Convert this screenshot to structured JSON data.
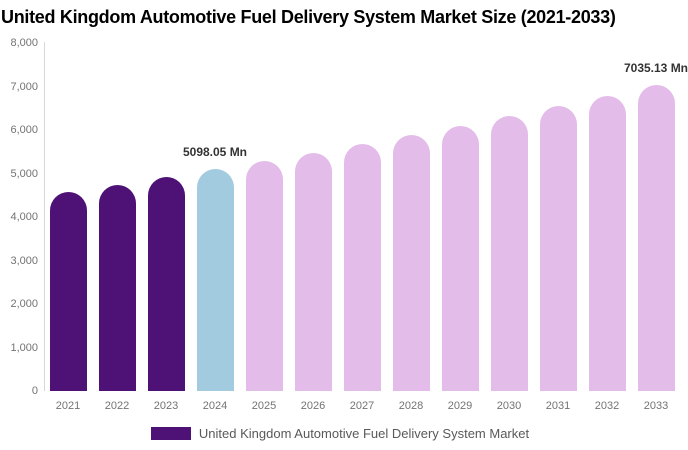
{
  "title": "United Kingdom Automotive Fuel Delivery System Market Size (2021-2033)",
  "legend": {
    "label": "United Kingdom Automotive Fuel Delivery System Market",
    "swatch_color": "#4e1277"
  },
  "colors": {
    "historical_bar": "#4e1277",
    "base_year_bar": "#a3cbe0",
    "forecast_bar": "#e4bcea",
    "axis_line": "#d8d8d8",
    "tick_text": "#737373",
    "data_label_text": "#333333",
    "legend_text": "#595959",
    "title_text": "#000000"
  },
  "chart_data": {
    "type": "bar",
    "title": "United Kingdom Automotive Fuel Delivery System Market Size (2021-2033)",
    "xlabel": "",
    "ylabel": "",
    "unit": "Mn",
    "grid": false,
    "legend_position": "bottom",
    "ylim": [
      0,
      8000
    ],
    "y_ticks": [
      {
        "value": 0,
        "label": "0"
      },
      {
        "value": 1000,
        "label": "1,000"
      },
      {
        "value": 2000,
        "label": "2,000"
      },
      {
        "value": 3000,
        "label": "3,000"
      },
      {
        "value": 4000,
        "label": "4,000"
      },
      {
        "value": 5000,
        "label": "5,000"
      },
      {
        "value": 6000,
        "label": "6,000"
      },
      {
        "value": 7000,
        "label": "7,000"
      },
      {
        "value": 8000,
        "label": "8,000"
      }
    ],
    "categories": [
      "2021",
      "2022",
      "2023",
      "2024",
      "2025",
      "2026",
      "2027",
      "2028",
      "2029",
      "2030",
      "2031",
      "2032",
      "2033"
    ],
    "values": [
      4579,
      4746,
      4919,
      5098.05,
      5284,
      5477,
      5676,
      5883,
      6098,
      6320,
      6551,
      6789,
      7035.13
    ],
    "bar_colors": [
      "#4e1277",
      "#4e1277",
      "#4e1277",
      "#a3cbe0",
      "#e4bcea",
      "#e4bcea",
      "#e4bcea",
      "#e4bcea",
      "#e4bcea",
      "#e4bcea",
      "#e4bcea",
      "#e4bcea",
      "#e4bcea"
    ],
    "series": [
      {
        "name": "United Kingdom Automotive Fuel Delivery System Market",
        "values": [
          4579,
          4746,
          4919,
          5098.05,
          5284,
          5477,
          5676,
          5883,
          6098,
          6320,
          6551,
          6789,
          7035.13
        ]
      }
    ],
    "annotations": [
      {
        "category": "2024",
        "label": "5098.05 Mn"
      },
      {
        "category": "2033",
        "label": "7035.13 Mn"
      }
    ]
  }
}
